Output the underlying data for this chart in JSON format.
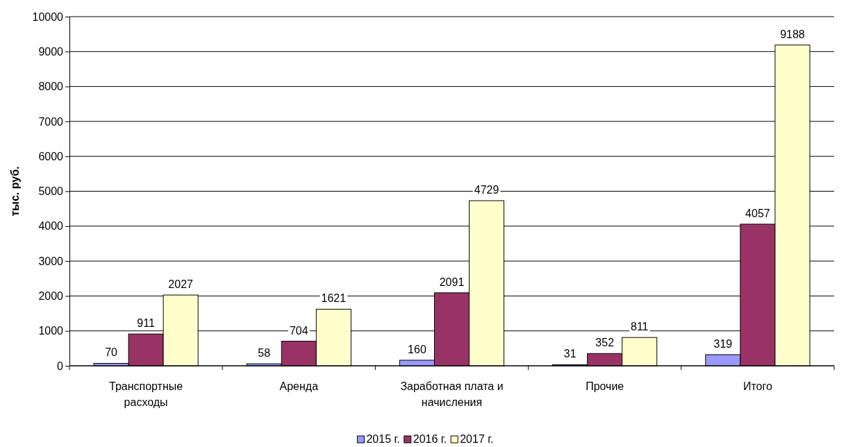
{
  "chart_data": {
    "type": "bar",
    "ylabel": "тыс. руб.",
    "categories": [
      "Транспортные расходы",
      "Аренда",
      "Заработная плата и начисления",
      "Прочие",
      "Итого"
    ],
    "series": [
      {
        "name": "2015 г.",
        "color": "#9999ff",
        "values": [
          70,
          58,
          160,
          31,
          319
        ]
      },
      {
        "name": "2016 г.",
        "color": "#993366",
        "values": [
          911,
          704,
          2091,
          352,
          4057
        ]
      },
      {
        "name": "2017 г.",
        "color": "#ffffcc",
        "values": [
          2027,
          1621,
          4729,
          811,
          9188
        ]
      }
    ],
    "ylim": [
      0,
      10000
    ],
    "yticks": [
      0,
      1000,
      2000,
      3000,
      4000,
      5000,
      6000,
      7000,
      8000,
      9000,
      10000
    ],
    "grid": "y",
    "legend": "bottom",
    "data_labels": true
  }
}
